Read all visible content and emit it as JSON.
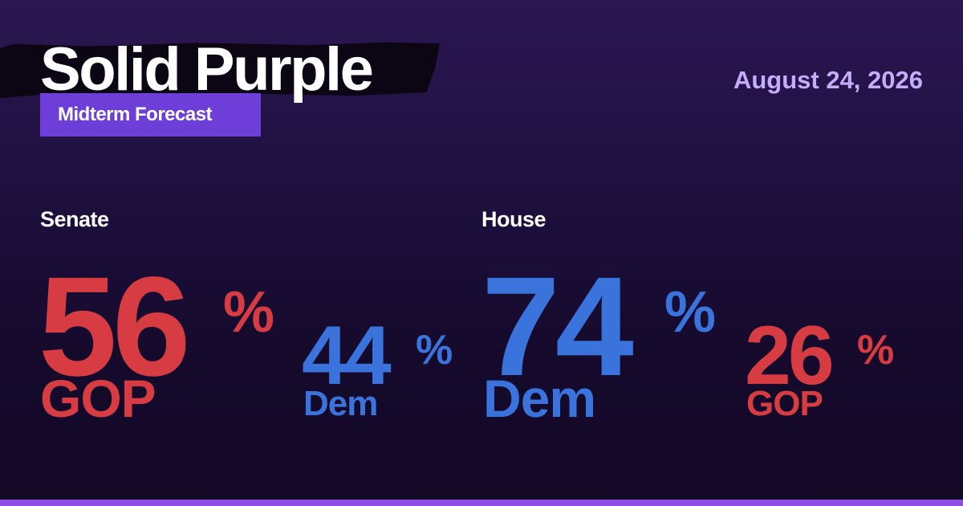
{
  "header": {
    "title": "Solid Purple",
    "subtitle": "Midterm Forecast",
    "date": "August 24, 2026"
  },
  "colors": {
    "gop": "#d73c42",
    "dem": "#3a73dc",
    "accent": "#6d3fd8",
    "date": "#c6adfa",
    "bottom_bar": "#8f4de8"
  },
  "senate": {
    "label": "Senate",
    "leader": {
      "party": "GOP",
      "value": "56",
      "unit": "%"
    },
    "trailer": {
      "party": "Dem",
      "value": "44",
      "unit": "%"
    }
  },
  "house": {
    "label": "House",
    "leader": {
      "party": "Dem",
      "value": "74",
      "unit": "%"
    },
    "trailer": {
      "party": "GOP",
      "value": "26",
      "unit": "%"
    }
  }
}
